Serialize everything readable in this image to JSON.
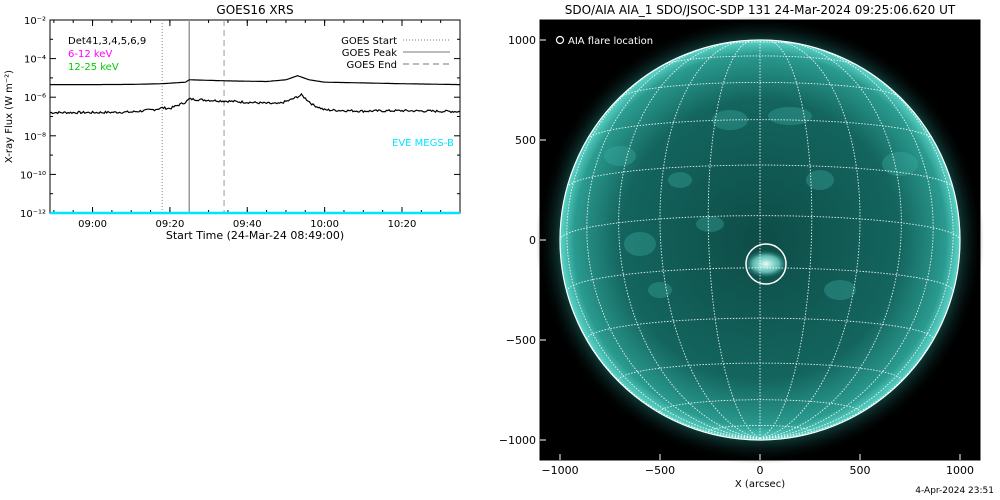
{
  "left_panel": {
    "title": "GOES16 XRS",
    "ylabel": "X-ray Flux (W m⁻²)",
    "xlabel": "Start Time (24-Mar-24 08:49:00)",
    "legend_left": [
      {
        "text": "Det41,3,4,5,6,9",
        "color": "#000000"
      },
      {
        "text": "6-12 keV",
        "color": "#ff00ff"
      },
      {
        "text": "12-25 keV",
        "color": "#00cc00"
      }
    ],
    "legend_right": [
      {
        "text": "GOES Start",
        "style": "dotted"
      },
      {
        "text": "GOES Peak",
        "style": "solid"
      },
      {
        "text": "GOES End",
        "style": "dashed"
      }
    ],
    "eve_label": "EVE MEGS-B",
    "eve_color": "#00e5ff"
  },
  "chart_data": [
    {
      "type": "line",
      "title": "GOES16 XRS",
      "xlabel": "Start Time (24-Mar-24 08:49:00)",
      "ylabel": "X-ray Flux (W m⁻²)",
      "y_scale": "log",
      "xlim": [
        "08:49",
        "10:35"
      ],
      "ylim": [
        1e-12,
        0.01
      ],
      "x_ticks": [
        "09:00",
        "09:20",
        "09:40",
        "10:00",
        "10:20"
      ],
      "y_ticks": [
        "10⁻¹²",
        "10⁻¹⁰",
        "10⁻⁸",
        "10⁻⁶",
        "10⁻⁴",
        "10⁻²"
      ],
      "events": {
        "goes_start": "09:18",
        "goes_peak": "09:25",
        "goes_end": "09:34"
      },
      "series": [
        {
          "name": "",
          "color": "#000000",
          "x": [
            "08:49",
            "09:00",
            "09:10",
            "09:18",
            "09:24",
            "09:25",
            "09:35",
            "09:45",
            "09:50",
            "09:53",
            "09:56",
            "10:00",
            "10:10",
            "10:20",
            "10:35"
          ],
          "y": [
            4.5e-06,
            4.5e-06,
            4.6e-06,
            5e-06,
            6e-06,
            8e-06,
            7e-06,
            6.5e-06,
            8e-06,
            1.3e-05,
            8e-06,
            6e-06,
            5.5e-06,
            5e-06,
            4.5e-06
          ]
        },
        {
          "name": "",
          "color": "#000000",
          "x": [
            "08:49",
            "09:00",
            "09:10",
            "09:16",
            "09:18",
            "09:20",
            "09:24",
            "09:25",
            "09:30",
            "09:40",
            "09:48",
            "09:51",
            "09:54",
            "09:57",
            "10:00",
            "10:10",
            "10:20",
            "10:35"
          ],
          "y": [
            1.6e-07,
            1.6e-07,
            1.7e-07,
            2.3e-07,
            2.8e-07,
            2.6e-07,
            5.5e-07,
            8e-07,
            7e-07,
            5.5e-07,
            4.5e-07,
            7e-07,
            1.3e-06,
            4e-07,
            2.2e-07,
            1.9e-07,
            2e-07,
            1.8e-07
          ]
        },
        {
          "name": "EVE MEGS-B",
          "color": "#00e5ff",
          "x": [
            "08:49",
            "10:35"
          ],
          "y": [
            1e-12,
            1e-12
          ]
        }
      ]
    },
    {
      "type": "scatter",
      "title": "SDO/AIA AIA_1 SDO/JSOC-SDP 131 24-Mar-2024 09:25:06.620 UT",
      "xlabel": "X (arcsec)",
      "ylabel": "",
      "xlim": [
        -1100,
        1100
      ],
      "ylim": [
        -1100,
        1100
      ],
      "x_ticks": [
        -1000,
        -500,
        0,
        500,
        1000
      ],
      "y_ticks": [
        -1000,
        -500,
        0,
        500,
        1000
      ],
      "legend": "AIA flare location",
      "flare_location": {
        "x": 30,
        "y": -120
      },
      "solar_radius": 1000
    }
  ],
  "right_panel": {
    "title": "SDO/AIA AIA_1 SDO/JSOC-SDP 131 24-Mar-2024 09:25:06.620 UT",
    "legend": "AIA flare location",
    "xlabel": "X (arcsec)"
  },
  "timestamp": "4-Apr-2024 23:51"
}
